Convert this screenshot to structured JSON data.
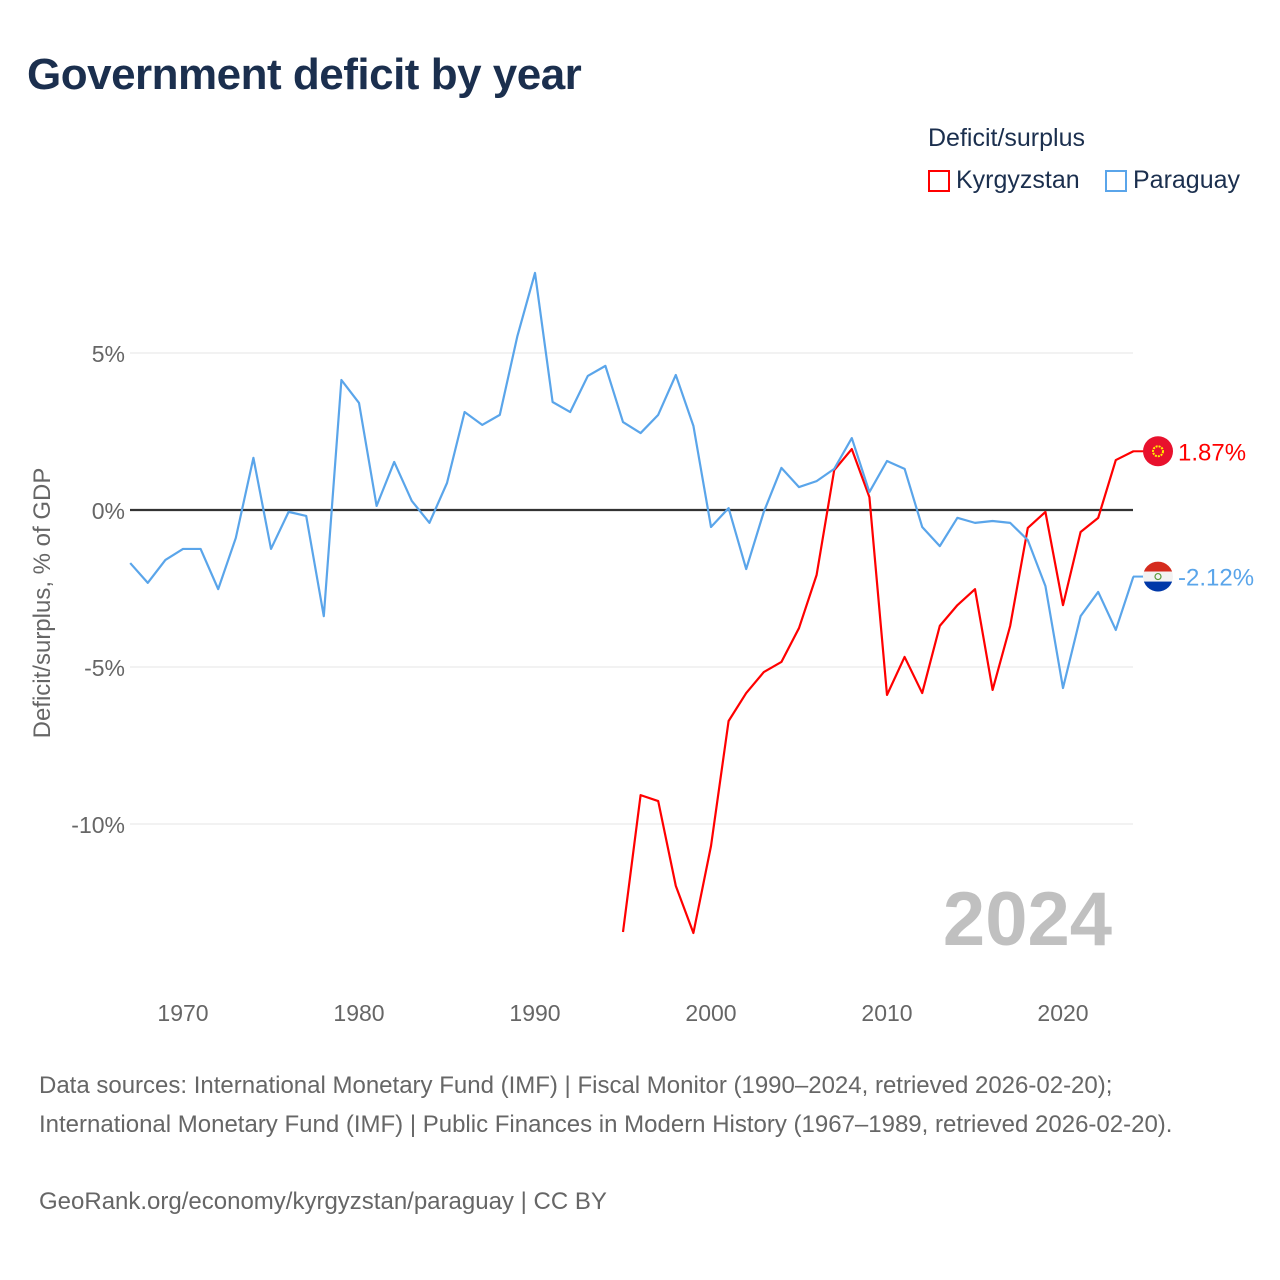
{
  "title": "Government deficit by year",
  "legend": {
    "title": "Deficit/surplus",
    "items": [
      {
        "label": "Kyrgyzstan",
        "color": "#ff0000"
      },
      {
        "label": "Paraguay",
        "color": "#5aa5ea"
      }
    ]
  },
  "big_year": "2024",
  "footer": {
    "sources": "Data sources: International Monetary Fund (IMF) | Fiscal Monitor (1990–2024, retrieved 2026-02-20); International Monetary Fund (IMF) | Public Finances in Modern History (1967–1989, retrieved 2026-02-20).",
    "link": "GeoRank.org/economy/kyrgyzstan/paraguay | CC BY"
  },
  "chart_data": {
    "type": "line",
    "title": "Government deficit by year",
    "xlabel": "",
    "ylabel": "Deficit/surplus, % of GDP",
    "xlim": [
      1967,
      2024
    ],
    "ylim": [
      -14.7,
      9.3
    ],
    "xticks": [
      1970,
      1980,
      1990,
      2000,
      2010,
      2020
    ],
    "yticks": [
      {
        "v": 5,
        "label": "5%"
      },
      {
        "v": 0,
        "label": "0%"
      },
      {
        "v": -5,
        "label": "-5%"
      },
      {
        "v": -10,
        "label": "-10%"
      }
    ],
    "grid": true,
    "legend_position": "top-right",
    "series": [
      {
        "name": "Kyrgyzstan",
        "color": "#ff0000",
        "end_label": "1.87%",
        "start": 1995,
        "values": [
          -13.44,
          -9.08,
          -9.27,
          -11.97,
          -13.47,
          -10.7,
          -6.72,
          -5.83,
          -5.16,
          -4.84,
          -3.76,
          -2.07,
          1.27,
          1.94,
          0.41,
          -5.89,
          -4.68,
          -5.83,
          -3.69,
          -3.03,
          -2.52,
          -5.73,
          -3.69,
          -0.57,
          -0.06,
          -3.03,
          -0.7,
          -0.25,
          1.59,
          1.87
        ]
      },
      {
        "name": "Paraguay",
        "color": "#5aa5ea",
        "end_label": "-2.12%",
        "start": 1967,
        "values": [
          -1.69,
          -2.32,
          -1.59,
          -1.24,
          -1.24,
          -2.52,
          -0.89,
          1.66,
          -1.24,
          -0.06,
          -0.19,
          -3.38,
          4.14,
          3.41,
          0.13,
          1.53,
          0.29,
          -0.41,
          0.86,
          3.12,
          2.71,
          3.03,
          5.54,
          7.55,
          3.44,
          3.12,
          4.27,
          4.59,
          2.8,
          2.45,
          3.03,
          4.3,
          2.68,
          -0.54,
          0.06,
          -1.88,
          -0.06,
          1.34,
          0.73,
          0.92,
          1.31,
          2.29,
          0.57,
          1.56,
          1.31,
          -0.54,
          -1.15,
          -0.25,
          -0.41,
          -0.35,
          -0.41,
          -0.96,
          -2.42,
          -5.67,
          -3.38,
          -2.61,
          -3.82,
          -2.12
        ]
      }
    ]
  }
}
